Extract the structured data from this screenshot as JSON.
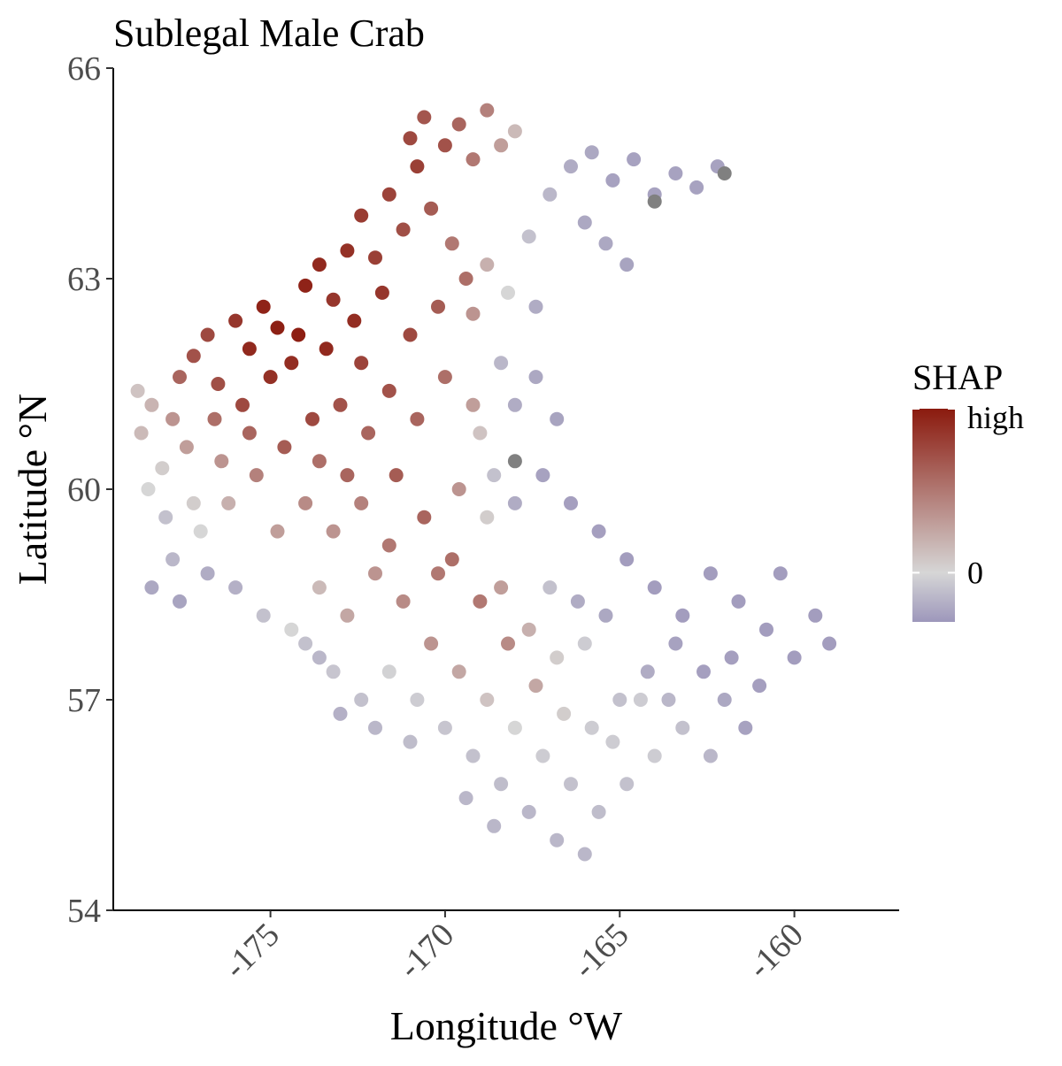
{
  "chart_data": {
    "type": "scatter",
    "title": "Sublegal Male Crab",
    "xlabel": "Longitude °W",
    "ylabel": "Latitude °N",
    "xlim": [
      -179.5,
      -157.0
    ],
    "ylim": [
      54,
      66
    ],
    "x_ticks": [
      {
        "value": -175,
        "label": "-175"
      },
      {
        "value": -170,
        "label": "-170"
      },
      {
        "value": -165,
        "label": "-165"
      },
      {
        "value": -160,
        "label": "-160"
      }
    ],
    "y_ticks": [
      {
        "value": 54,
        "label": "54"
      },
      {
        "value": 57,
        "label": "57"
      },
      {
        "value": 60,
        "label": "60"
      },
      {
        "value": 63,
        "label": "63"
      },
      {
        "value": 66,
        "label": "66"
      }
    ],
    "grid": false,
    "legend": {
      "title": "SHAP",
      "placement": "right",
      "labels": [
        {
          "value": 1.0,
          "label": "high"
        },
        {
          "value": 0.0,
          "label": "0"
        }
      ],
      "range": [
        -0.3,
        1.0
      ],
      "colors": {
        "low": "#9d97bb",
        "mid": "#d6d6d6",
        "high": "#8b1a0e"
      }
    },
    "color_variable": "SHAP",
    "missing_color": "#808080",
    "points_note_unused": null,
    "points": [
      [
        -178.7,
        60.8,
        0.15
      ],
      [
        -178.4,
        61.2,
        0.18
      ],
      [
        -178.1,
        60.3,
        0.05
      ],
      [
        -177.8,
        61.0,
        0.35
      ],
      [
        -178.5,
        60.0,
        0.0
      ],
      [
        -177.6,
        61.6,
        0.6
      ],
      [
        -177.2,
        61.9,
        0.7
      ],
      [
        -176.8,
        62.2,
        0.75
      ],
      [
        -176.5,
        61.5,
        0.72
      ],
      [
        -176.0,
        62.4,
        0.85
      ],
      [
        -175.6,
        62.0,
        0.92
      ],
      [
        -175.2,
        62.6,
        0.95
      ],
      [
        -174.8,
        62.3,
        0.97
      ],
      [
        -174.4,
        61.8,
        0.9
      ],
      [
        -174.0,
        62.9,
        0.95
      ],
      [
        -173.6,
        63.2,
        0.92
      ],
      [
        -173.2,
        62.7,
        0.85
      ],
      [
        -172.8,
        63.4,
        0.88
      ],
      [
        -172.4,
        63.9,
        0.82
      ],
      [
        -172.0,
        63.3,
        0.8
      ],
      [
        -171.6,
        64.2,
        0.78
      ],
      [
        -171.2,
        63.7,
        0.72
      ],
      [
        -170.8,
        64.6,
        0.8
      ],
      [
        -170.4,
        64.0,
        0.65
      ],
      [
        -170.0,
        64.9,
        0.7
      ],
      [
        -169.6,
        65.2,
        0.6
      ],
      [
        -169.2,
        64.7,
        0.5
      ],
      [
        -168.8,
        65.4,
        0.45
      ],
      [
        -168.4,
        64.9,
        0.3
      ],
      [
        -168.0,
        65.1,
        0.15
      ],
      [
        -170.6,
        65.3,
        0.68
      ],
      [
        -171.0,
        65.0,
        0.75
      ],
      [
        -169.8,
        63.5,
        0.5
      ],
      [
        -169.2,
        62.5,
        0.35
      ],
      [
        -168.8,
        63.2,
        0.2
      ],
      [
        -168.2,
        62.8,
        0.0
      ],
      [
        -167.6,
        63.6,
        -0.1
      ],
      [
        -167.0,
        64.2,
        -0.15
      ],
      [
        -166.4,
        64.6,
        -0.2
      ],
      [
        -165.8,
        64.8,
        -0.22
      ],
      [
        -165.2,
        64.4,
        -0.25
      ],
      [
        -164.6,
        64.7,
        -0.25
      ],
      [
        -164.0,
        64.2,
        -0.25
      ],
      [
        -163.4,
        64.5,
        -0.25
      ],
      [
        -162.8,
        64.3,
        -0.25
      ],
      [
        -162.2,
        64.6,
        -0.25
      ],
      [
        -166.0,
        63.8,
        -0.22
      ],
      [
        -165.4,
        63.5,
        -0.22
      ],
      [
        -164.8,
        63.2,
        -0.24
      ],
      [
        -167.4,
        62.6,
        -0.2
      ],
      [
        -168.4,
        61.8,
        -0.15
      ],
      [
        -168.0,
        61.2,
        -0.2
      ],
      [
        -167.4,
        61.6,
        -0.22
      ],
      [
        -166.8,
        61.0,
        -0.24
      ],
      [
        -169.0,
        60.8,
        0.1
      ],
      [
        -168.6,
        60.2,
        -0.1
      ],
      [
        -168.0,
        59.8,
        -0.2
      ],
      [
        -167.2,
        60.2,
        -0.25
      ],
      [
        -166.4,
        59.8,
        -0.26
      ],
      [
        -165.6,
        59.4,
        -0.26
      ],
      [
        -164.8,
        59.0,
        -0.27
      ],
      [
        -164.0,
        58.6,
        -0.27
      ],
      [
        -163.2,
        58.2,
        -0.27
      ],
      [
        -162.4,
        58.8,
        -0.27
      ],
      [
        -161.6,
        58.4,
        -0.27
      ],
      [
        -160.8,
        58.0,
        -0.27
      ],
      [
        -160.0,
        57.6,
        -0.27
      ],
      [
        -159.4,
        58.2,
        -0.27
      ],
      [
        -159.0,
        57.8,
        -0.27
      ],
      [
        -160.4,
        58.8,
        -0.27
      ],
      [
        -161.0,
        57.2,
        -0.26
      ],
      [
        -161.8,
        57.6,
        -0.26
      ],
      [
        -162.6,
        57.4,
        -0.26
      ],
      [
        -163.4,
        57.8,
        -0.25
      ],
      [
        -164.2,
        57.4,
        -0.2
      ],
      [
        -165.0,
        57.0,
        -0.1
      ],
      [
        -165.8,
        56.6,
        -0.05
      ],
      [
        -166.6,
        56.8,
        0.05
      ],
      [
        -167.4,
        57.2,
        0.25
      ],
      [
        -168.2,
        57.8,
        0.4
      ],
      [
        -169.0,
        58.4,
        0.5
      ],
      [
        -169.8,
        59.0,
        0.55
      ],
      [
        -170.6,
        59.6,
        0.6
      ],
      [
        -171.4,
        60.2,
        0.65
      ],
      [
        -172.2,
        60.8,
        0.6
      ],
      [
        -173.0,
        61.2,
        0.7
      ],
      [
        -173.8,
        61.0,
        0.75
      ],
      [
        -174.6,
        60.6,
        0.65
      ],
      [
        -175.4,
        60.2,
        0.45
      ],
      [
        -176.2,
        59.8,
        0.2
      ],
      [
        -177.0,
        59.4,
        0.0
      ],
      [
        -177.8,
        59.0,
        -0.15
      ],
      [
        -178.4,
        58.6,
        -0.22
      ],
      [
        -177.6,
        58.4,
        -0.24
      ],
      [
        -176.8,
        58.8,
        -0.2
      ],
      [
        -176.0,
        58.6,
        -0.18
      ],
      [
        -175.2,
        58.2,
        -0.1
      ],
      [
        -174.4,
        58.0,
        0.0
      ],
      [
        -173.6,
        58.6,
        0.15
      ],
      [
        -172.8,
        58.2,
        0.25
      ],
      [
        -172.0,
        58.8,
        0.35
      ],
      [
        -171.2,
        58.4,
        0.4
      ],
      [
        -170.4,
        57.8,
        0.35
      ],
      [
        -169.6,
        57.4,
        0.25
      ],
      [
        -168.8,
        57.0,
        0.1
      ],
      [
        -168.0,
        56.6,
        0.0
      ],
      [
        -167.2,
        56.2,
        -0.05
      ],
      [
        -166.4,
        55.8,
        -0.1
      ],
      [
        -165.6,
        55.4,
        -0.12
      ],
      [
        -164.8,
        55.8,
        -0.1
      ],
      [
        -164.0,
        56.2,
        -0.05
      ],
      [
        -163.2,
        56.6,
        -0.1
      ],
      [
        -162.4,
        56.2,
        -0.15
      ],
      [
        -166.8,
        55.0,
        -0.15
      ],
      [
        -166.0,
        54.8,
        -0.15
      ],
      [
        -167.6,
        55.4,
        -0.15
      ],
      [
        -168.4,
        55.8,
        -0.12
      ],
      [
        -169.2,
        56.2,
        -0.1
      ],
      [
        -170.0,
        56.6,
        -0.08
      ],
      [
        -170.8,
        57.0,
        -0.05
      ],
      [
        -171.6,
        57.4,
        -0.02
      ],
      [
        -172.4,
        57.0,
        -0.1
      ],
      [
        -173.2,
        57.4,
        -0.08
      ],
      [
        -174.0,
        57.8,
        -0.1
      ],
      [
        -171.0,
        56.4,
        -0.12
      ],
      [
        -172.0,
        56.6,
        -0.15
      ],
      [
        -173.0,
        56.8,
        -0.18
      ],
      [
        -173.6,
        57.6,
        -0.15
      ],
      [
        -169.4,
        55.6,
        -0.15
      ],
      [
        -168.6,
        55.2,
        -0.15
      ],
      [
        -165.2,
        56.4,
        -0.05
      ],
      [
        -164.4,
        57.0,
        -0.05
      ],
      [
        -163.6,
        57.0,
        -0.15
      ],
      [
        -162.0,
        57.0,
        -0.22
      ],
      [
        -161.4,
        56.6,
        -0.25
      ],
      [
        -178.8,
        61.4,
        0.1
      ],
      [
        -177.4,
        60.6,
        0.3
      ],
      [
        -176.6,
        61.0,
        0.55
      ],
      [
        -175.8,
        61.2,
        0.75
      ],
      [
        -175.0,
        61.6,
        0.88
      ],
      [
        -174.2,
        62.2,
        0.98
      ],
      [
        -173.4,
        62.0,
        0.92
      ],
      [
        -172.6,
        62.4,
        0.9
      ],
      [
        -171.8,
        62.8,
        0.85
      ],
      [
        -171.0,
        62.2,
        0.75
      ],
      [
        -170.2,
        62.6,
        0.65
      ],
      [
        -169.4,
        63.0,
        0.55
      ],
      [
        -170.0,
        61.6,
        0.55
      ],
      [
        -170.8,
        61.0,
        0.6
      ],
      [
        -171.6,
        61.4,
        0.7
      ],
      [
        -172.4,
        61.8,
        0.78
      ],
      [
        -169.2,
        61.2,
        0.3
      ],
      [
        -168.8,
        59.6,
        0.05
      ],
      [
        -169.6,
        60.0,
        0.35
      ],
      [
        -170.2,
        58.8,
        0.5
      ],
      [
        -168.4,
        58.6,
        0.3
      ],
      [
        -167.6,
        58.0,
        0.2
      ],
      [
        -166.8,
        57.6,
        0.05
      ],
      [
        -166.0,
        57.8,
        -0.05
      ],
      [
        -167.0,
        58.6,
        -0.1
      ],
      [
        -166.2,
        58.4,
        -0.2
      ],
      [
        -165.4,
        58.2,
        -0.22
      ],
      [
        -178.0,
        59.6,
        -0.1
      ],
      [
        -177.2,
        59.8,
        0.05
      ],
      [
        -176.4,
        60.4,
        0.35
      ],
      [
        -175.6,
        60.8,
        0.6
      ],
      [
        -174.8,
        59.4,
        0.3
      ],
      [
        -174.0,
        59.8,
        0.4
      ],
      [
        -173.2,
        59.4,
        0.35
      ],
      [
        -172.4,
        59.8,
        0.45
      ],
      [
        -171.6,
        59.2,
        0.5
      ],
      [
        -173.6,
        60.4,
        0.55
      ],
      [
        -172.8,
        60.2,
        0.6
      ],
      [
        -168.0,
        60.4,
        null
      ],
      [
        -164.0,
        64.1,
        null
      ],
      [
        -162.0,
        64.5,
        null
      ]
    ]
  }
}
